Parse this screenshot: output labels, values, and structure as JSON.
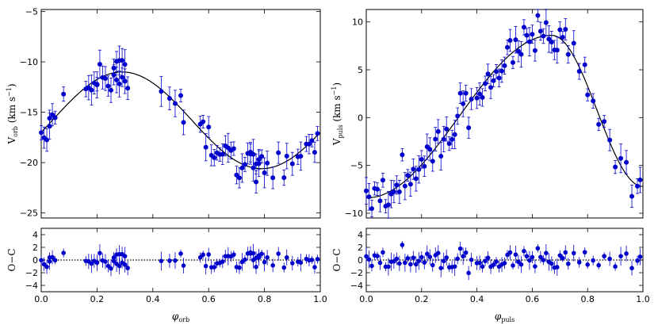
{
  "colors": {
    "points": "#0000cc",
    "model": "#000000",
    "axes": "#000000"
  },
  "chart_data": [
    {
      "id": "orb",
      "type": "scatter",
      "xlabel": "φ",
      "xlabel_sub": "orb",
      "xlim": [
        0,
        1
      ],
      "xticks": [
        0,
        0.2,
        0.4,
        0.6,
        0.8,
        1.0
      ],
      "xtick_labels": [
        "0.0",
        "0.2",
        "0.4",
        "0.6",
        "0.8",
        "1.0"
      ],
      "top": {
        "ylabel": "V",
        "ylabel_sub": "orb",
        "ylabel_unit": "(km s",
        "ylabel_exp": "−1",
        "ylabel_close": ")",
        "ylim": [
          -25.5,
          -4.8
        ],
        "yticks": [
          -25,
          -20,
          -15,
          -10,
          -5
        ],
        "ytick_labels": [
          "−25",
          "−20",
          "−15",
          "−10",
          "−5"
        ],
        "model": {
          "type": "sine",
          "mean": -15.8,
          "amplitude": 4.8,
          "phase_of_max": 0.29
        },
        "seed": 7,
        "x": [
          0.0,
          0.01,
          0.02,
          0.03,
          0.03,
          0.04,
          0.05,
          0.08,
          0.16,
          0.17,
          0.18,
          0.19,
          0.2,
          0.2,
          0.21,
          0.22,
          0.23,
          0.24,
          0.25,
          0.26,
          0.26,
          0.27,
          0.27,
          0.28,
          0.28,
          0.29,
          0.29,
          0.3,
          0.3,
          0.31,
          0.43,
          0.46,
          0.48,
          0.5,
          0.51,
          0.57,
          0.58,
          0.59,
          0.6,
          0.61,
          0.62,
          0.63,
          0.64,
          0.65,
          0.66,
          0.67,
          0.68,
          0.69,
          0.7,
          0.71,
          0.72,
          0.73,
          0.74,
          0.75,
          0.75,
          0.76,
          0.76,
          0.77,
          0.77,
          0.78,
          0.78,
          0.79,
          0.8,
          0.81,
          0.83,
          0.85,
          0.87,
          0.88,
          0.9,
          0.92,
          0.93,
          0.95,
          0.96,
          0.97,
          0.98,
          0.99
        ]
      },
      "bottom": {
        "ylabel": "O−C",
        "ylim": [
          -5,
          5
        ],
        "yticks": [
          -4,
          -2,
          0,
          2,
          4
        ],
        "ytick_labels": [
          "−4",
          "−2",
          "0",
          "2",
          "4"
        ],
        "zero_line": "dotted"
      }
    },
    {
      "id": "puls",
      "type": "scatter",
      "xlabel": "φ",
      "xlabel_sub": "puls",
      "xlim": [
        0,
        1
      ],
      "xticks": [
        0,
        0.2,
        0.4,
        0.6,
        0.8,
        1.0
      ],
      "xtick_labels": [
        "0.0",
        "0.2",
        "0.4",
        "0.6",
        "0.8",
        "1.0"
      ],
      "top": {
        "ylabel": "V",
        "ylabel_sub": "puls",
        "ylabel_unit": "(km s",
        "ylabel_exp": "−1",
        "ylabel_close": ")",
        "ylim": [
          -10.5,
          11.3
        ],
        "yticks": [
          -10,
          -5,
          0,
          5,
          10
        ],
        "ytick_labels": [
          "−10",
          "−5",
          "0",
          "5",
          "10"
        ],
        "model": {
          "type": "sawtooth",
          "min": -8.4,
          "phase_min": 0.0,
          "max": 8.6,
          "phase_max": 0.67,
          "end": -7.2
        },
        "seed": 13,
        "x": [
          0.0,
          0.01,
          0.02,
          0.03,
          0.04,
          0.05,
          0.06,
          0.07,
          0.08,
          0.09,
          0.1,
          0.11,
          0.12,
          0.13,
          0.14,
          0.15,
          0.16,
          0.17,
          0.18,
          0.19,
          0.2,
          0.21,
          0.22,
          0.23,
          0.24,
          0.25,
          0.26,
          0.27,
          0.28,
          0.29,
          0.3,
          0.31,
          0.32,
          0.33,
          0.34,
          0.35,
          0.36,
          0.37,
          0.38,
          0.4,
          0.41,
          0.42,
          0.43,
          0.44,
          0.45,
          0.46,
          0.47,
          0.48,
          0.49,
          0.5,
          0.51,
          0.52,
          0.53,
          0.54,
          0.55,
          0.56,
          0.57,
          0.58,
          0.59,
          0.6,
          0.61,
          0.62,
          0.63,
          0.64,
          0.65,
          0.66,
          0.67,
          0.68,
          0.69,
          0.7,
          0.71,
          0.72,
          0.73,
          0.75,
          0.77,
          0.79,
          0.8,
          0.82,
          0.84,
          0.86,
          0.88,
          0.9,
          0.92,
          0.94,
          0.96,
          0.98,
          0.99
        ]
      }
    }
  ]
}
